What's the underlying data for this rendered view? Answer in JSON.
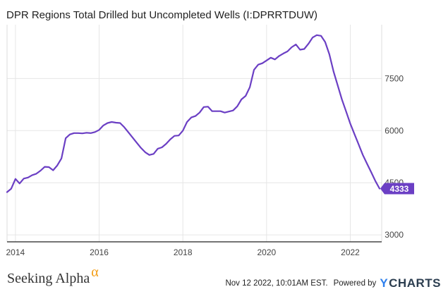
{
  "title": "DPR Regions Total Drilled but Uncompleted Wells (I:DPRRTDUW)",
  "footer": {
    "brand_left": "Seeking Alpha",
    "brand_alpha": "α",
    "timestamp": "Nov 12 2022, 10:01AM EST.",
    "powered_by": "Powered by",
    "brand_right_y": "Y",
    "brand_right_rest": "CHARTS"
  },
  "colors": {
    "line": "#6b3fc4",
    "badge": "#6b3fc4",
    "grid": "#e6e6e6",
    "axis_text": "#444444"
  },
  "chart_data": {
    "type": "line",
    "title": "DPR Regions Total Drilled but Uncompleted Wells (I:DPRRTDUW)",
    "xlabel": "",
    "ylabel": "",
    "xlim": [
      2013.8,
      2022.75
    ],
    "ylim": [
      2800,
      9050
    ],
    "x_ticks": [
      2014,
      2016,
      2018,
      2020,
      2022
    ],
    "y_ticks": [
      3000,
      4500,
      6000,
      7500
    ],
    "last_value_label": "4333",
    "grid": true,
    "series": [
      {
        "x": [
          2013.8,
          2013.9,
          2014.0,
          2014.1,
          2014.2,
          2014.3,
          2014.4,
          2014.5,
          2014.6,
          2014.7,
          2014.8,
          2014.9,
          2015.0,
          2015.1,
          2015.2,
          2015.3,
          2015.4,
          2015.5,
          2015.6,
          2015.7,
          2015.8,
          2015.9,
          2016.0,
          2016.1,
          2016.2,
          2016.3,
          2016.4,
          2016.5,
          2016.6,
          2016.7,
          2016.8,
          2016.9,
          2017.0,
          2017.1,
          2017.2,
          2017.3,
          2017.4,
          2017.5,
          2017.6,
          2017.7,
          2017.8,
          2017.9,
          2018.0,
          2018.1,
          2018.2,
          2018.3,
          2018.4,
          2018.5,
          2018.6,
          2018.7,
          2018.8,
          2018.9,
          2019.0,
          2019.1,
          2019.2,
          2019.3,
          2019.4,
          2019.5,
          2019.6,
          2019.7,
          2019.8,
          2019.9,
          2020.0,
          2020.1,
          2020.2,
          2020.3,
          2020.4,
          2020.5,
          2020.6,
          2020.7,
          2020.8,
          2020.9,
          2021.0,
          2021.1,
          2021.2,
          2021.3,
          2021.4,
          2021.5,
          2021.6,
          2021.7,
          2021.8,
          2021.9,
          2022.0,
          2022.1,
          2022.2,
          2022.3,
          2022.4,
          2022.5,
          2022.6,
          2022.7
        ],
        "values": [
          4230,
          4330,
          4610,
          4480,
          4620,
          4650,
          4720,
          4760,
          4850,
          4960,
          4950,
          4860,
          5000,
          5200,
          5780,
          5890,
          5930,
          5930,
          5920,
          5940,
          5930,
          5960,
          6020,
          6150,
          6220,
          6250,
          6230,
          6220,
          6100,
          5950,
          5800,
          5650,
          5500,
          5380,
          5300,
          5330,
          5480,
          5520,
          5620,
          5750,
          5850,
          5860,
          6000,
          6250,
          6380,
          6420,
          6520,
          6680,
          6690,
          6560,
          6560,
          6560,
          6520,
          6550,
          6580,
          6700,
          6900,
          7000,
          7250,
          7750,
          7900,
          7940,
          8020,
          8100,
          8050,
          8150,
          8220,
          8280,
          8400,
          8480,
          8330,
          8350,
          8500,
          8680,
          8750,
          8730,
          8550,
          8200,
          7700,
          7300,
          6900,
          6550,
          6200,
          5900,
          5600,
          5300,
          5050,
          4800,
          4550,
          4333
        ]
      }
    ]
  }
}
